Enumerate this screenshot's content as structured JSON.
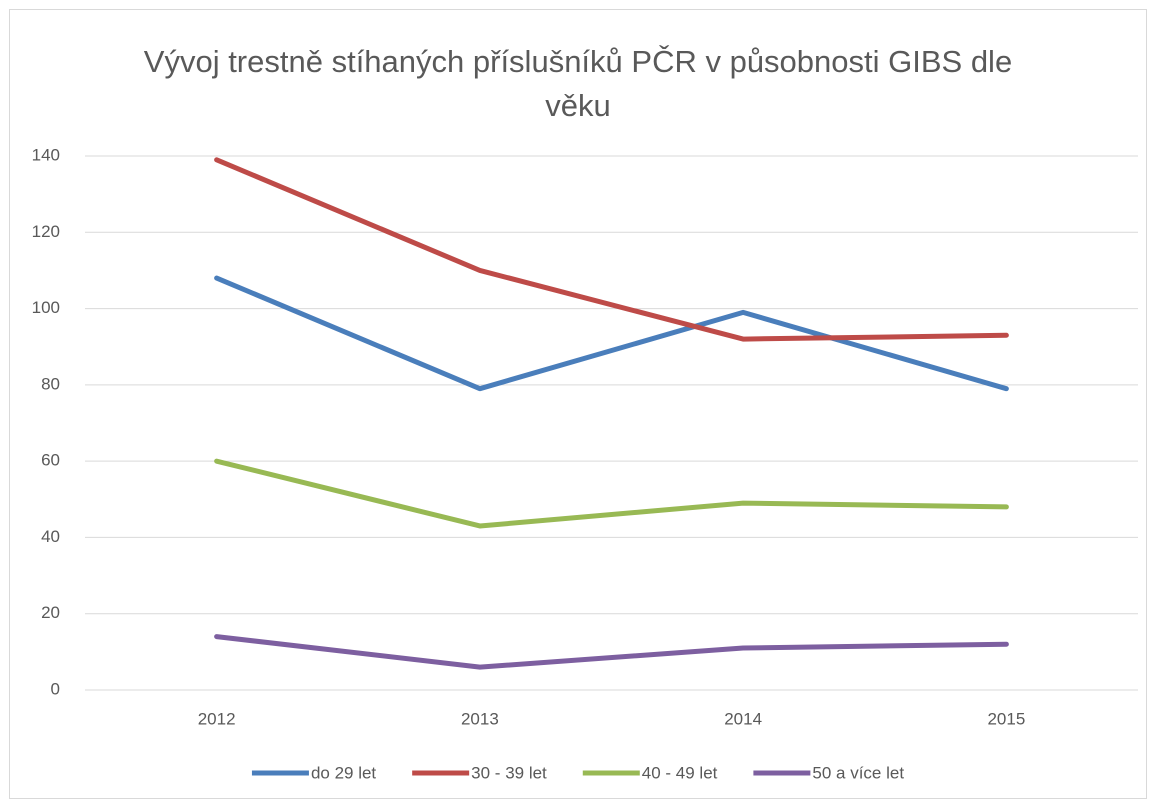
{
  "chart_data": {
    "type": "line",
    "title": "Vývoj trestně stíhaných příslušníků PČR v působnosti GIBS dle věku",
    "categories": [
      "2012",
      "2013",
      "2014",
      "2015"
    ],
    "series": [
      {
        "name": "do 29 let",
        "color": "#4a7ebb",
        "values": [
          108,
          79,
          99,
          79
        ]
      },
      {
        "name": "30 - 39 let",
        "color": "#be4b48",
        "values": [
          139,
          110,
          92,
          93
        ]
      },
      {
        "name": "40 - 49 let",
        "color": "#98b954",
        "values": [
          60,
          43,
          49,
          48
        ]
      },
      {
        "name": "50 a více let",
        "color": "#7d5fa0",
        "values": [
          14,
          6,
          11,
          12
        ]
      }
    ],
    "ylim": [
      0,
      140
    ],
    "yticks": [
      0,
      20,
      40,
      60,
      80,
      100,
      120,
      140
    ],
    "grid": true,
    "legend": "bottom"
  }
}
